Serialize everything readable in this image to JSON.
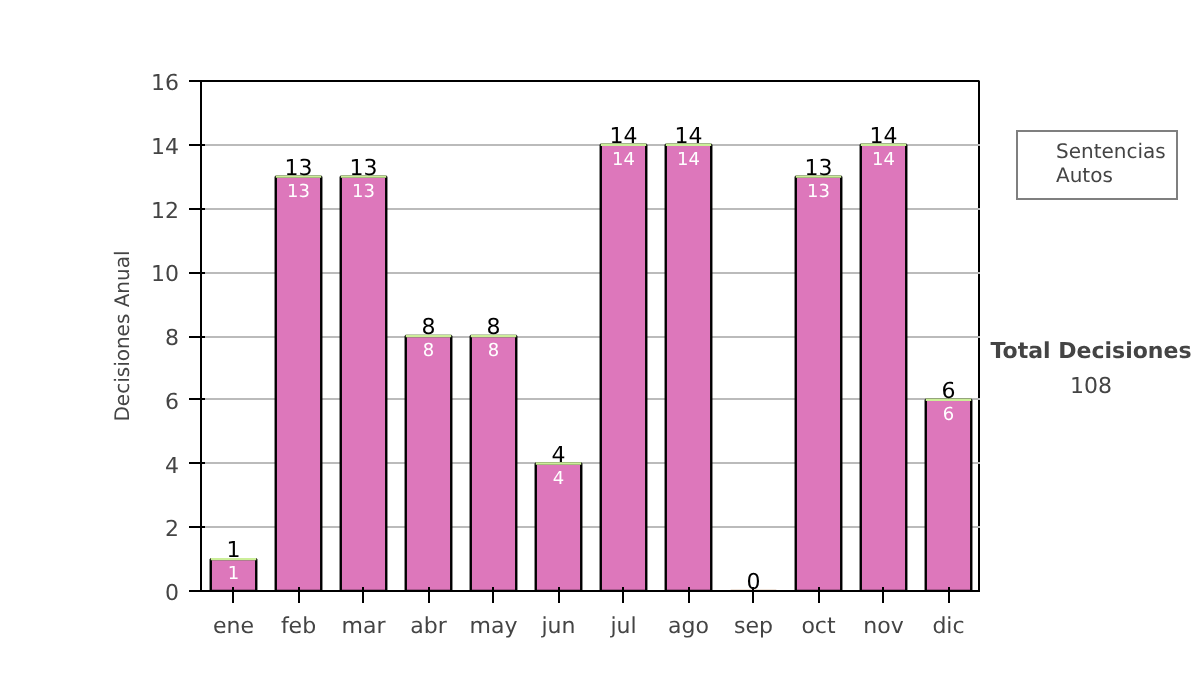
{
  "chart_data": {
    "type": "bar",
    "stacked": true,
    "ylabel": "Decisiones Anual",
    "categories": [
      "ene",
      "feb",
      "mar",
      "abr",
      "may",
      "jun",
      "jul",
      "ago",
      "sep",
      "oct",
      "nov",
      "dic"
    ],
    "series": [
      {
        "name": "Sentencias",
        "color": "#dd77bb",
        "values": [
          1,
          13,
          13,
          8,
          8,
          4,
          14,
          14,
          0,
          13,
          14,
          6
        ],
        "value_labels": [
          "1",
          "13",
          "13",
          "8",
          "8",
          "4",
          "14",
          "14",
          null,
          "13",
          "14",
          "6"
        ]
      },
      {
        "name": "Autos",
        "color": "#ccee99",
        "values": [
          0,
          0,
          0,
          0,
          0,
          0,
          0,
          0,
          0,
          0,
          0,
          0
        ]
      }
    ],
    "totals": [
      "1",
      "13",
      "13",
      "8",
      "8",
      "4",
      "14",
      "14",
      "0",
      "13",
      "14",
      "6"
    ],
    "ylim": [
      0,
      16
    ],
    "yticks": [
      0,
      2,
      4,
      6,
      8,
      10,
      12,
      14,
      16
    ],
    "grid": "y",
    "legend": "right",
    "annotations": [
      "Total Decisiones",
      "108"
    ]
  }
}
